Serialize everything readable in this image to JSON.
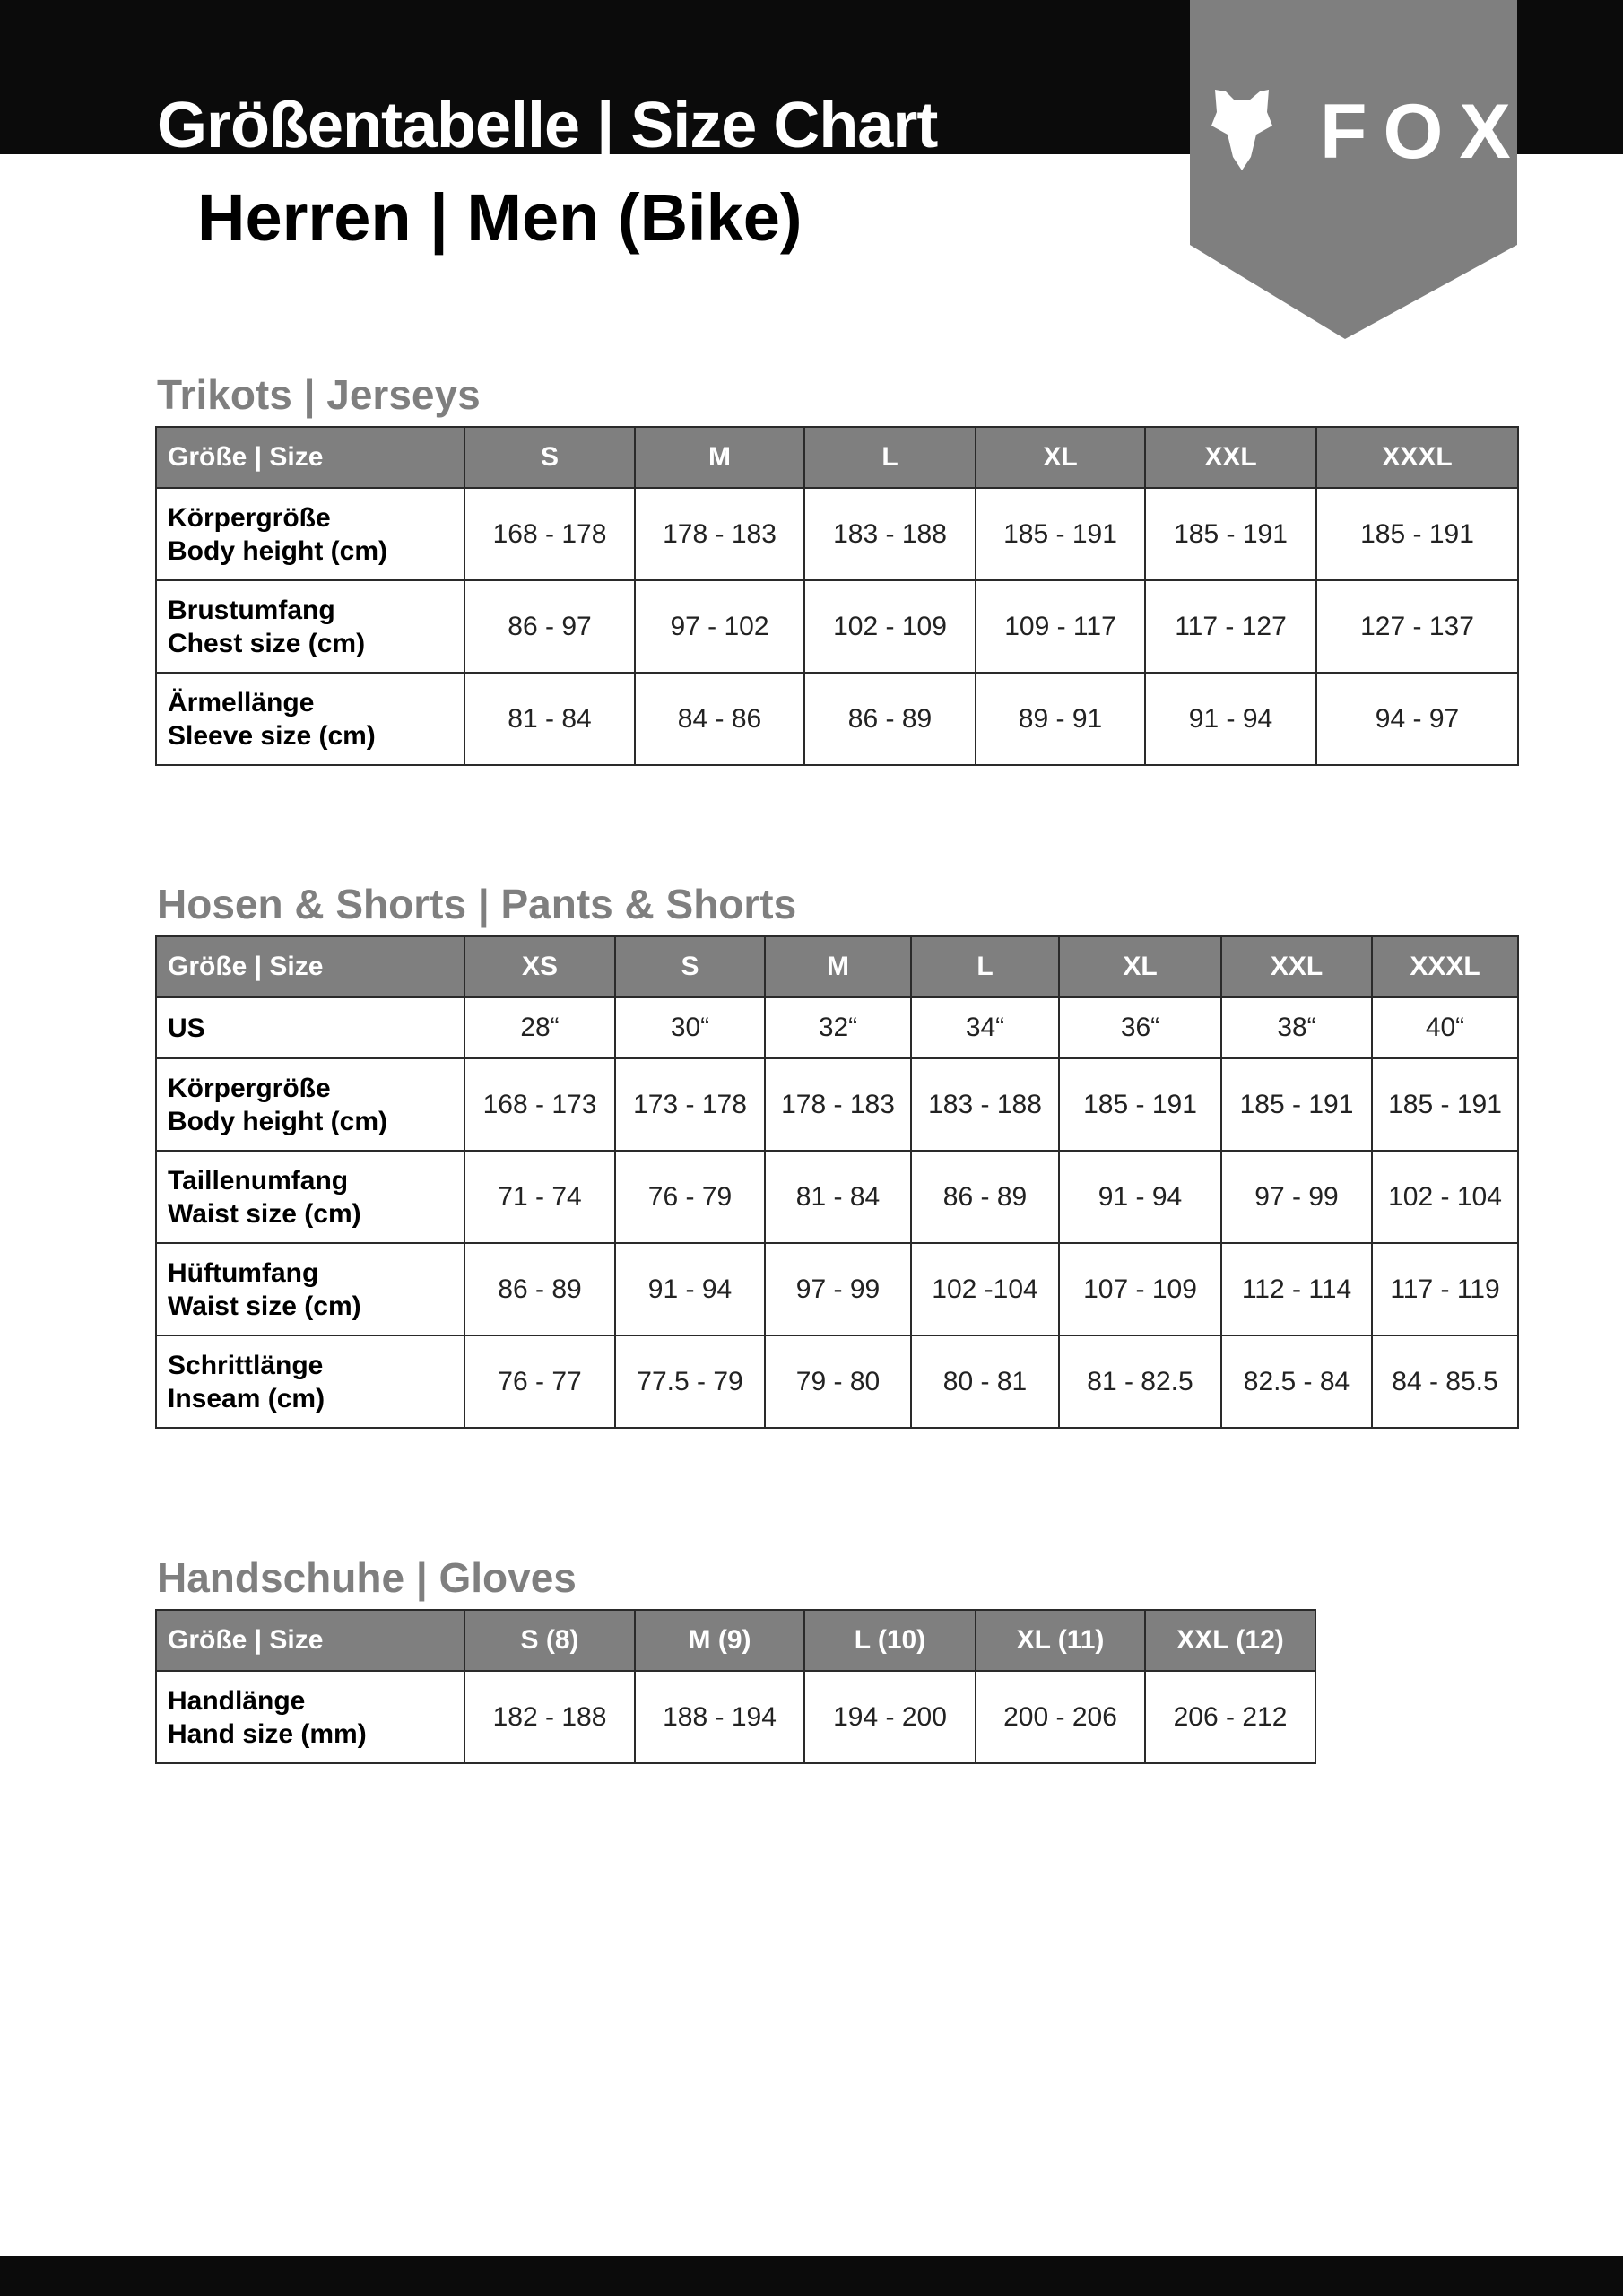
{
  "header": {
    "title": "Größentabelle | Size Chart",
    "subtitle": "Herren | Men (Bike)",
    "brand": "FOX",
    "colors": {
      "band": "#0b0b0b",
      "banner": "#7f7f7f",
      "table_header": "#7f7f7f",
      "section_title": "#7f7f7f"
    }
  },
  "jerseys": {
    "title": "Trikots | Jerseys",
    "header": [
      "Größe | Size",
      "S",
      "M",
      "L",
      "XL",
      "XXL",
      "XXXL"
    ],
    "rows": [
      {
        "label": [
          "Körpergröße",
          "Body height (cm)"
        ],
        "values": [
          "168 - 178",
          "178 - 183",
          "183 - 188",
          "185 - 191",
          "185 - 191",
          "185 - 191"
        ]
      },
      {
        "label": [
          "Brustumfang",
          "Chest size (cm)"
        ],
        "values": [
          "86 - 97",
          "97 - 102",
          "102 - 109",
          "109 - 117",
          "117 - 127",
          "127 - 137"
        ]
      },
      {
        "label": [
          "Ärmellänge",
          "Sleeve size (cm)"
        ],
        "values": [
          "81 - 84",
          "84 - 86",
          "86 - 89",
          "89 - 91",
          "91 - 94",
          "94 - 97"
        ]
      }
    ]
  },
  "pants": {
    "title": "Hosen & Shorts | Pants & Shorts",
    "header": [
      "Größe | Size",
      "XS",
      "S",
      "M",
      "L",
      "XL",
      "XXL",
      "XXXL"
    ],
    "rows": [
      {
        "label": [
          "US"
        ],
        "values": [
          "28“",
          "30“",
          "32“",
          "34“",
          "36“",
          "38“",
          "40“"
        ]
      },
      {
        "label": [
          "Körpergröße",
          "Body height (cm)"
        ],
        "values": [
          "168 - 173",
          "173 - 178",
          "178 - 183",
          "183 - 188",
          "185 - 191",
          "185 - 191",
          "185 - 191"
        ]
      },
      {
        "label": [
          "Taillenumfang",
          "Waist size (cm)"
        ],
        "values": [
          "71 - 74",
          "76 - 79",
          "81 - 84",
          "86 - 89",
          "91 - 94",
          "97 - 99",
          "102 - 104"
        ]
      },
      {
        "label": [
          "Hüftumfang",
          "Waist size (cm)"
        ],
        "values": [
          "86 - 89",
          "91 - 94",
          "97 - 99",
          "102 -104",
          "107 - 109",
          "112 - 114",
          "117 - 119"
        ]
      },
      {
        "label": [
          "Schrittlänge",
          "Inseam (cm)"
        ],
        "values": [
          "76 - 77",
          "77.5 - 79",
          "79 - 80",
          "80 - 81",
          "81 - 82.5",
          "82.5 - 84",
          "84 - 85.5"
        ]
      }
    ]
  },
  "gloves": {
    "title": "Handschuhe | Gloves",
    "header": [
      "Größe | Size",
      "S (8)",
      "M (9)",
      "L (10)",
      "XL (11)",
      "XXL (12)"
    ],
    "rows": [
      {
        "label": [
          "Handlänge",
          "Hand size (mm)"
        ],
        "values": [
          "182 - 188",
          "188 - 194",
          "194 - 200",
          "200 - 206",
          "206 - 212"
        ]
      }
    ]
  }
}
